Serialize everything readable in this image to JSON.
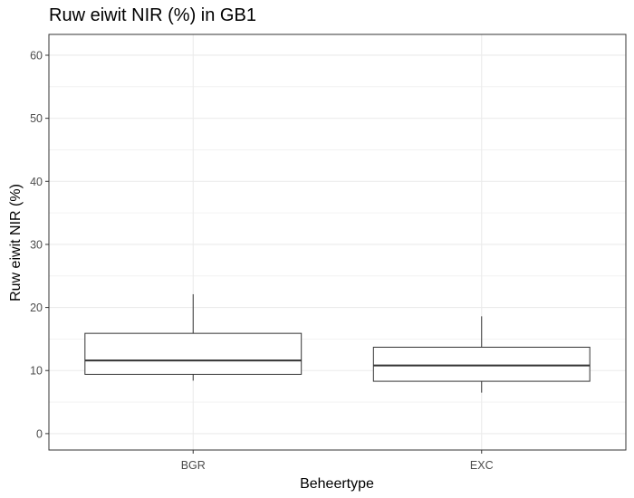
{
  "chart_data": {
    "type": "boxplot",
    "title": "Ruw eiwit NIR (%) in GB1",
    "xlabel": "Beheertype",
    "ylabel": "Ruw eiwit NIR (%)",
    "ylim": [
      -2.6,
      63.3
    ],
    "yticks": [
      0,
      10,
      20,
      30,
      40,
      50,
      60
    ],
    "ytick_labels": [
      "0",
      "10",
      "20",
      "30",
      "40",
      "50",
      "60"
    ],
    "grid": true,
    "categories": [
      "BGR",
      "EXC"
    ],
    "boxes": [
      {
        "category": "BGR",
        "whisker_low": 8.4,
        "q1": 9.4,
        "median": 11.6,
        "q3": 15.9,
        "whisker_high": 22.1
      },
      {
        "category": "EXC",
        "whisker_low": 6.5,
        "q1": 8.3,
        "median": 10.8,
        "q3": 13.7,
        "whisker_high": 18.6
      }
    ],
    "colors": {
      "box_fill": "#ffffff",
      "box_stroke": "#333333",
      "grid": "#ebebeb",
      "panel_border": "#333333"
    }
  }
}
